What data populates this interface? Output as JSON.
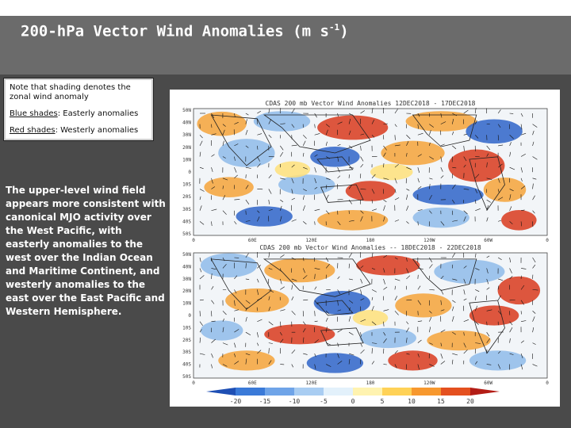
{
  "slide": {
    "title": "200-hPa Vector Wind Anomalies  (m s",
    "title_sup": "-1",
    "title_close": ")",
    "note": {
      "intro": "Note that shading denotes the zonal wind anomaly",
      "blue_label": "Blue shades",
      "blue_text": ": Easterly anomalies",
      "red_label": "Red shades",
      "red_text": ": Westerly anomalies"
    },
    "body": "The upper-level wind field appears more consistent with canonical MJO activity over the West Pacific, with easterly anomalies to the west over the Indian Ocean and Maritime Continent, and westerly anomalies to the east over the East Pacific and Western Hemisphere."
  },
  "figure": {
    "panels": [
      {
        "title": "CDAS  200  mb  Vector  Wind  Anomalies     12DEC2018 - 17DEC2018"
      },
      {
        "title": "CDAS  200  mb  Vector  Wind  Anomalies  --  18DEC2018 - 22DEC2018"
      }
    ],
    "lat_labels": [
      "50N",
      "40N",
      "30N",
      "20N",
      "10N",
      "0",
      "10S",
      "20S",
      "30S",
      "40S",
      "50S"
    ],
    "lon_labels": [
      "0",
      "60E",
      "120E",
      "180",
      "120W",
      "60W",
      "0"
    ],
    "colorbar": {
      "levels": [
        "-20",
        "-15",
        "-10",
        "-5",
        "0",
        "5",
        "10",
        "15",
        "20"
      ],
      "colors": [
        "#1e4fb4",
        "#3a7ad8",
        "#6fa4e8",
        "#a9cdf2",
        "#e3f1fb",
        "#fff3b0",
        "#ffd257",
        "#f7982e",
        "#e4501f",
        "#b31d16"
      ]
    },
    "colors": {
      "ocean": "#f2f5f8",
      "land": "#888888",
      "easterly_strong": "#2f64c9",
      "easterly": "#8fbbea",
      "westerly": "#f6a33a",
      "westerly_strong": "#d9391d",
      "weak_positive": "#ffe07a"
    }
  }
}
